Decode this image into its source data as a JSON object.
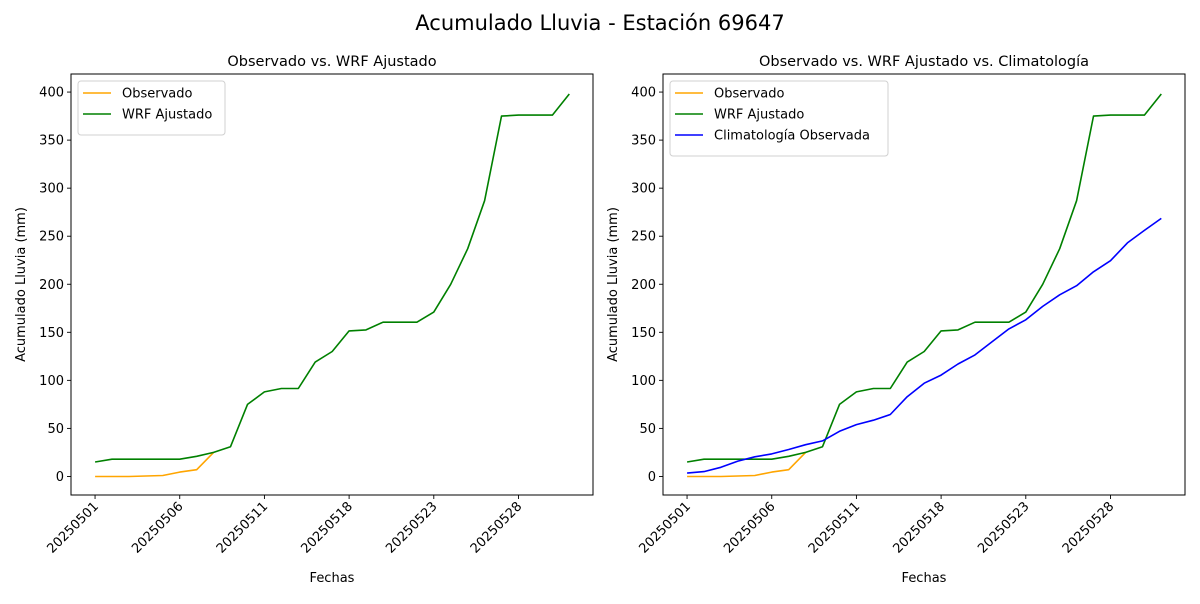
{
  "suptitle": "Acumulado Lluvia - Estación 69647",
  "chart_data": [
    {
      "type": "line",
      "title": "Observado vs. WRF Ajustado",
      "xlabel": "Fechas",
      "ylabel": "Acumulado Lluvia (mm)",
      "xticks": [
        {
          "index": 0,
          "label": "20250501"
        },
        {
          "index": 5,
          "label": "20250506"
        },
        {
          "index": 10,
          "label": "20250511"
        },
        {
          "index": 15,
          "label": "20250518"
        },
        {
          "index": 20,
          "label": "20250523"
        },
        {
          "index": 25,
          "label": "20250528"
        }
      ],
      "yticks": [
        0,
        50,
        100,
        150,
        200,
        250,
        300,
        350,
        400
      ],
      "ylim": [
        -19.3,
        418.8
      ],
      "xlim": [
        -1.42,
        29.4
      ],
      "legend": "top-left",
      "series": [
        {
          "name": "Observado",
          "color": "#ffa500",
          "values": [
            0,
            0,
            0,
            0.5,
            1,
            4.5,
            7,
            25
          ]
        },
        {
          "name": "WRF Ajustado",
          "color": "#008000",
          "values": [
            15,
            18,
            18,
            18,
            18,
            18,
            21,
            25,
            31,
            75,
            88,
            91.5,
            91.5,
            119,
            130,
            151.5,
            152.5,
            160.5,
            160.5,
            160.5,
            171,
            200,
            237,
            287,
            375,
            376,
            376,
            376,
            398
          ]
        }
      ]
    },
    {
      "type": "line",
      "title": "Observado vs. WRF Ajustado vs. Climatología",
      "xlabel": "Fechas",
      "ylabel": "Acumulado Lluvia (mm)",
      "xticks": [
        {
          "index": 0,
          "label": "20250501"
        },
        {
          "index": 5,
          "label": "20250506"
        },
        {
          "index": 10,
          "label": "20250511"
        },
        {
          "index": 15,
          "label": "20250518"
        },
        {
          "index": 20,
          "label": "20250523"
        },
        {
          "index": 25,
          "label": "20250528"
        }
      ],
      "yticks": [
        0,
        50,
        100,
        150,
        200,
        250,
        300,
        350,
        400
      ],
      "ylim": [
        -19.3,
        418.8
      ],
      "xlim": [
        -1.42,
        29.4
      ],
      "legend": "top-left",
      "series": [
        {
          "name": "Observado",
          "color": "#ffa500",
          "values": [
            0,
            0,
            0,
            0.5,
            1,
            4.5,
            7,
            25
          ]
        },
        {
          "name": "WRF Ajustado",
          "color": "#008000",
          "values": [
            15,
            18,
            18,
            18,
            18,
            18,
            21,
            25,
            31,
            75,
            88,
            91.5,
            91.5,
            119,
            130,
            151.5,
            152.5,
            160.5,
            160.5,
            160.5,
            171,
            200,
            237,
            287,
            375,
            376,
            376,
            376,
            398
          ]
        },
        {
          "name": "Climatología Observada",
          "color": "#0000ff",
          "values": [
            3.5,
            5,
            9.5,
            16,
            20.5,
            23.5,
            28,
            33,
            37,
            47,
            54,
            58.5,
            64.5,
            83,
            97,
            105.5,
            117,
            126.5,
            140,
            153.5,
            163,
            177,
            189,
            198.5,
            213,
            224.5,
            243,
            256,
            268.5
          ]
        }
      ]
    }
  ]
}
